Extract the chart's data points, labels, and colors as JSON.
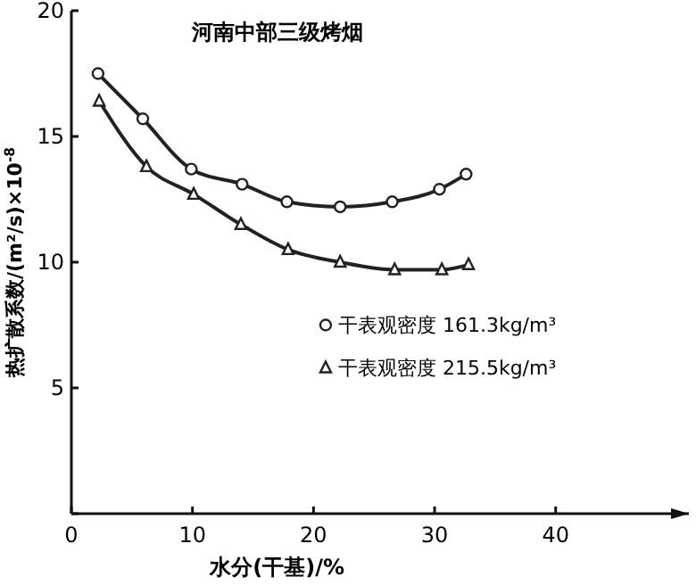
{
  "chart_data": {
    "type": "line",
    "title": "河南中部三级烤烟",
    "xlabel": "水分(干基)/%",
    "ylabel": "热扩散系数/(m²/s)×10$^{-8}$",
    "xlim": [
      0,
      51
    ],
    "xticks": [
      0,
      10,
      20,
      30,
      40
    ],
    "ylim": [
      0,
      20
    ],
    "yticks": [
      {
        "value": 0,
        "label": null
      },
      5,
      10,
      15,
      20
    ],
    "grid": false,
    "legend": "right",
    "line_style": "solid",
    "series": [
      {
        "name": "干表观密度 161.3kg/m³",
        "color": "#222222",
        "marker": "circle",
        "x": [
          2.2,
          5.9,
          9.9,
          14.1,
          17.8,
          22.2,
          26.5,
          30.4,
          32.6
        ],
        "values": [
          17.5,
          15.7,
          13.7,
          13.1,
          12.4,
          12.2,
          12.4,
          12.9,
          13.5
        ]
      },
      {
        "name": "干表观密度 215.5kg/m³",
        "color": "#222222",
        "marker": "triangle",
        "x": [
          2.3,
          6.2,
          10.1,
          14.0,
          17.9,
          22.2,
          26.7,
          30.6,
          32.8
        ],
        "values": [
          16.4,
          13.8,
          12.7,
          11.5,
          10.5,
          10.0,
          9.7,
          9.7,
          9.9
        ]
      }
    ]
  }
}
